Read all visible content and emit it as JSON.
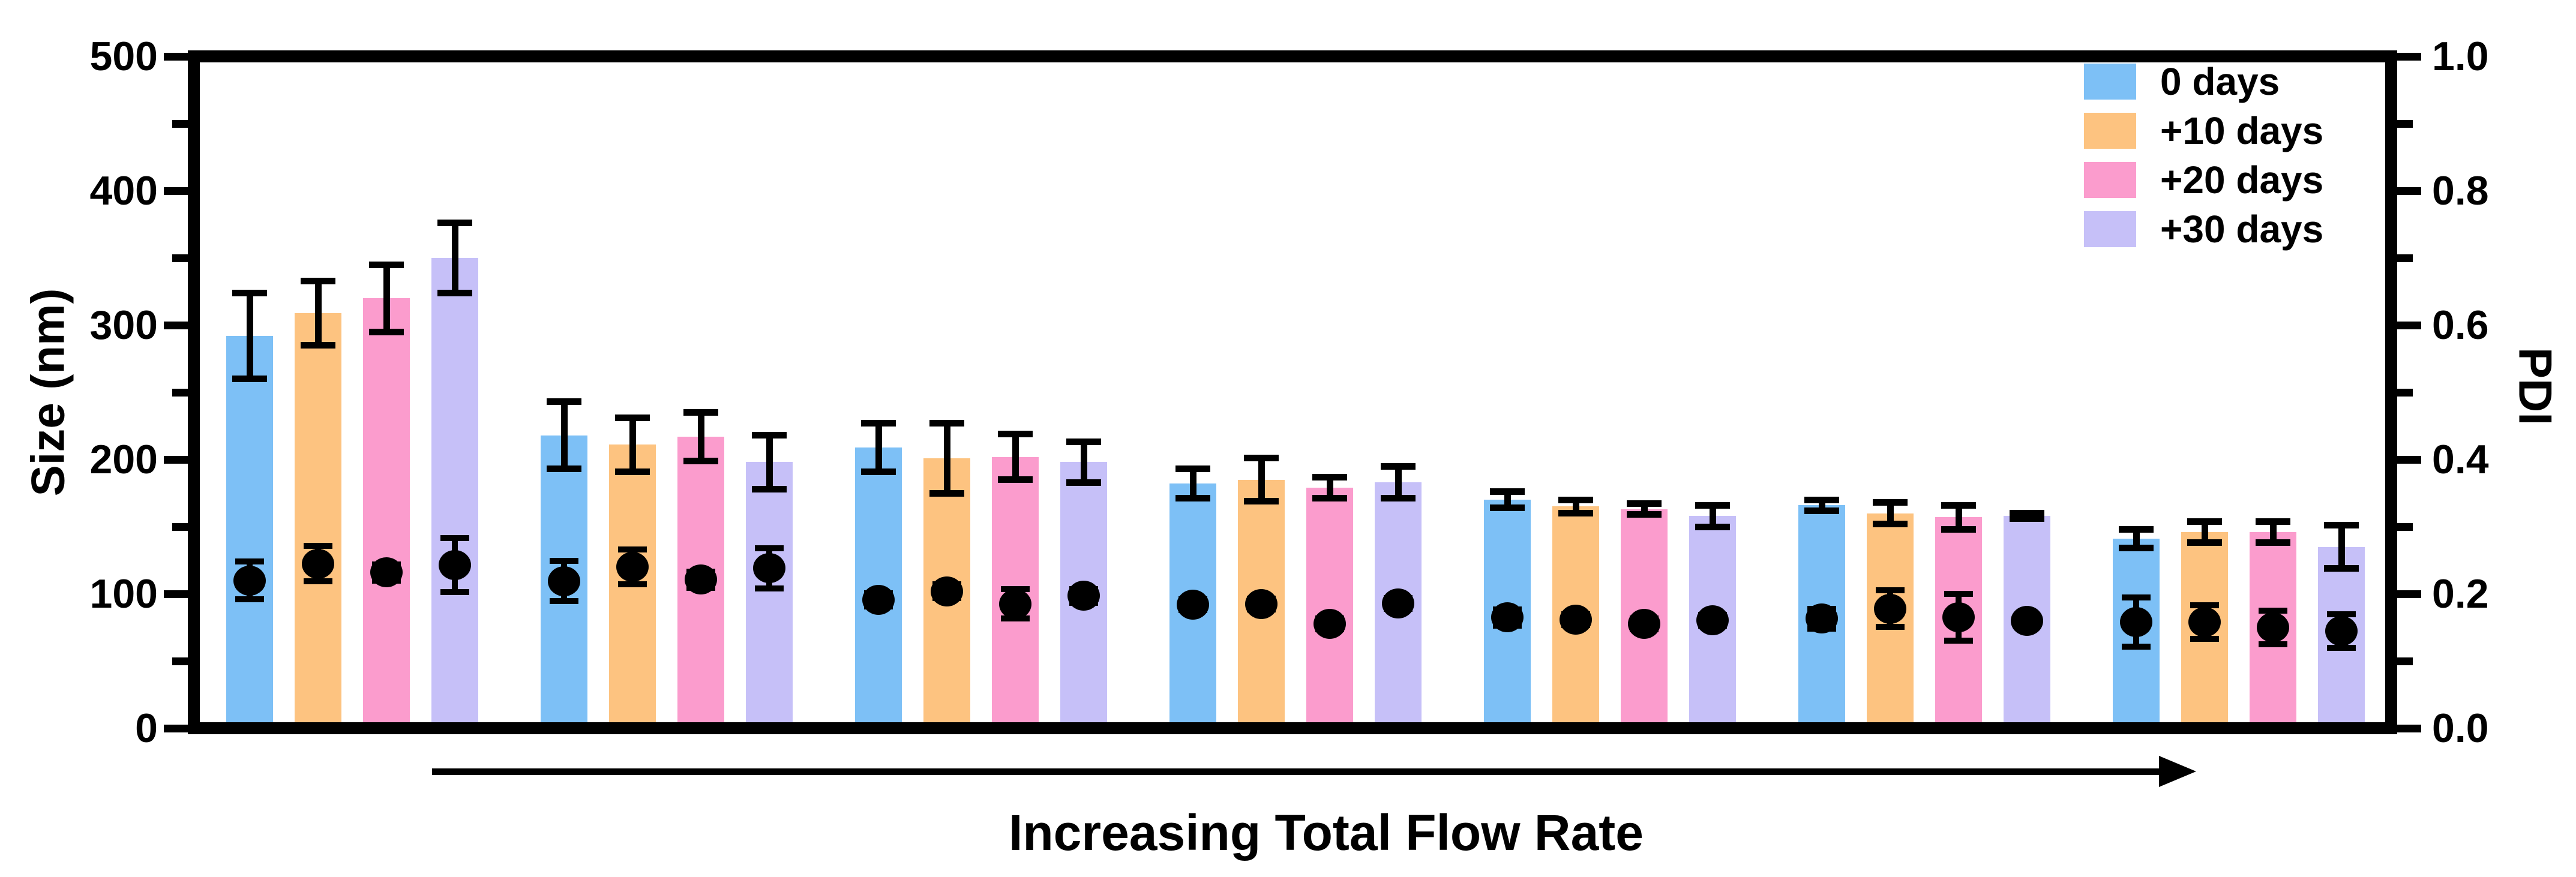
{
  "chart_data": {
    "type": "bar",
    "title": "",
    "left_axis": {
      "label": "Size (nm)",
      "min": 0,
      "max": 500,
      "major_tick_labels": [
        "0",
        "100",
        "200",
        "300",
        "400",
        "500"
      ],
      "major_tick_values": [
        0,
        100,
        200,
        300,
        400,
        500
      ],
      "minor_tick_values": [
        50,
        150,
        250,
        350,
        450
      ],
      "grid": false
    },
    "right_axis": {
      "label": "PDI",
      "min": 0.0,
      "max": 1.0,
      "major_tick_labels": [
        "0.0",
        "0.2",
        "0.4",
        "0.6",
        "0.8",
        "1.0"
      ],
      "major_tick_values": [
        0.0,
        0.2,
        0.4,
        0.6,
        0.8,
        1.0
      ],
      "minor_tick_values": [
        0.1,
        0.3,
        0.5,
        0.7,
        0.9
      ],
      "grid": false
    },
    "x_annotation": "Increasing Total Flow Rate",
    "legend_position": "top-right-inside",
    "legend": [
      {
        "label": "0 days",
        "color": "#7DC0F6"
      },
      {
        "label": "+10 days",
        "color": "#FDC380"
      },
      {
        "label": "+20 days",
        "color": "#FB9CCD"
      },
      {
        "label": "+30 days",
        "color": "#C6C0F8"
      }
    ],
    "group_count": 7,
    "series": [
      {
        "name": "0 days",
        "color": "#7DC0F6",
        "size_nm": [
          292,
          218,
          209,
          182,
          170,
          166,
          141
        ],
        "size_err": [
          32,
          25,
          18,
          11,
          6,
          4,
          7
        ],
        "pdi": [
          0.22,
          0.219,
          0.191,
          0.184,
          0.165,
          0.163,
          0.158
        ],
        "pdi_err": [
          0.028,
          0.03,
          0.01,
          0.008,
          0.012,
          0.015,
          0.037
        ]
      },
      {
        "name": "+10 days",
        "color": "#FDC380",
        "size_nm": [
          309,
          211,
          201,
          185,
          165,
          160,
          146
        ],
        "size_err": [
          24,
          20,
          26,
          16,
          5,
          8,
          8
        ],
        "pdi": [
          0.245,
          0.24,
          0.204,
          0.185,
          0.162,
          0.178,
          0.158
        ],
        "pdi_err": [
          0.026,
          0.026,
          0.01,
          0.008,
          0.008,
          0.027,
          0.025
        ]
      },
      {
        "name": "+20 days",
        "color": "#FB9CCD",
        "size_nm": [
          320,
          217,
          202,
          179,
          163,
          157,
          146
        ],
        "size_err": [
          25,
          18,
          17,
          8,
          4,
          9,
          8
        ],
        "pdi": [
          0.232,
          0.221,
          0.185,
          0.155,
          0.155,
          0.165,
          0.15
        ],
        "pdi_err": [
          0.012,
          0.012,
          0.022,
          0.008,
          0.008,
          0.035,
          0.025
        ]
      },
      {
        "name": "+30 days",
        "color": "#C6C0F8",
        "size_nm": [
          350,
          198,
          198,
          183,
          158,
          158,
          135
        ],
        "size_err": [
          26,
          20,
          15,
          12,
          8,
          2,
          16
        ],
        "pdi": [
          0.243,
          0.238,
          0.197,
          0.186,
          0.161,
          0.16,
          0.145
        ],
        "pdi_err": [
          0.04,
          0.03,
          0.01,
          0.008,
          0.008,
          0.006,
          0.025
        ]
      }
    ],
    "colors": {
      "axis": "#000000",
      "marker": "#000000",
      "background": "#FFFFFF"
    }
  }
}
